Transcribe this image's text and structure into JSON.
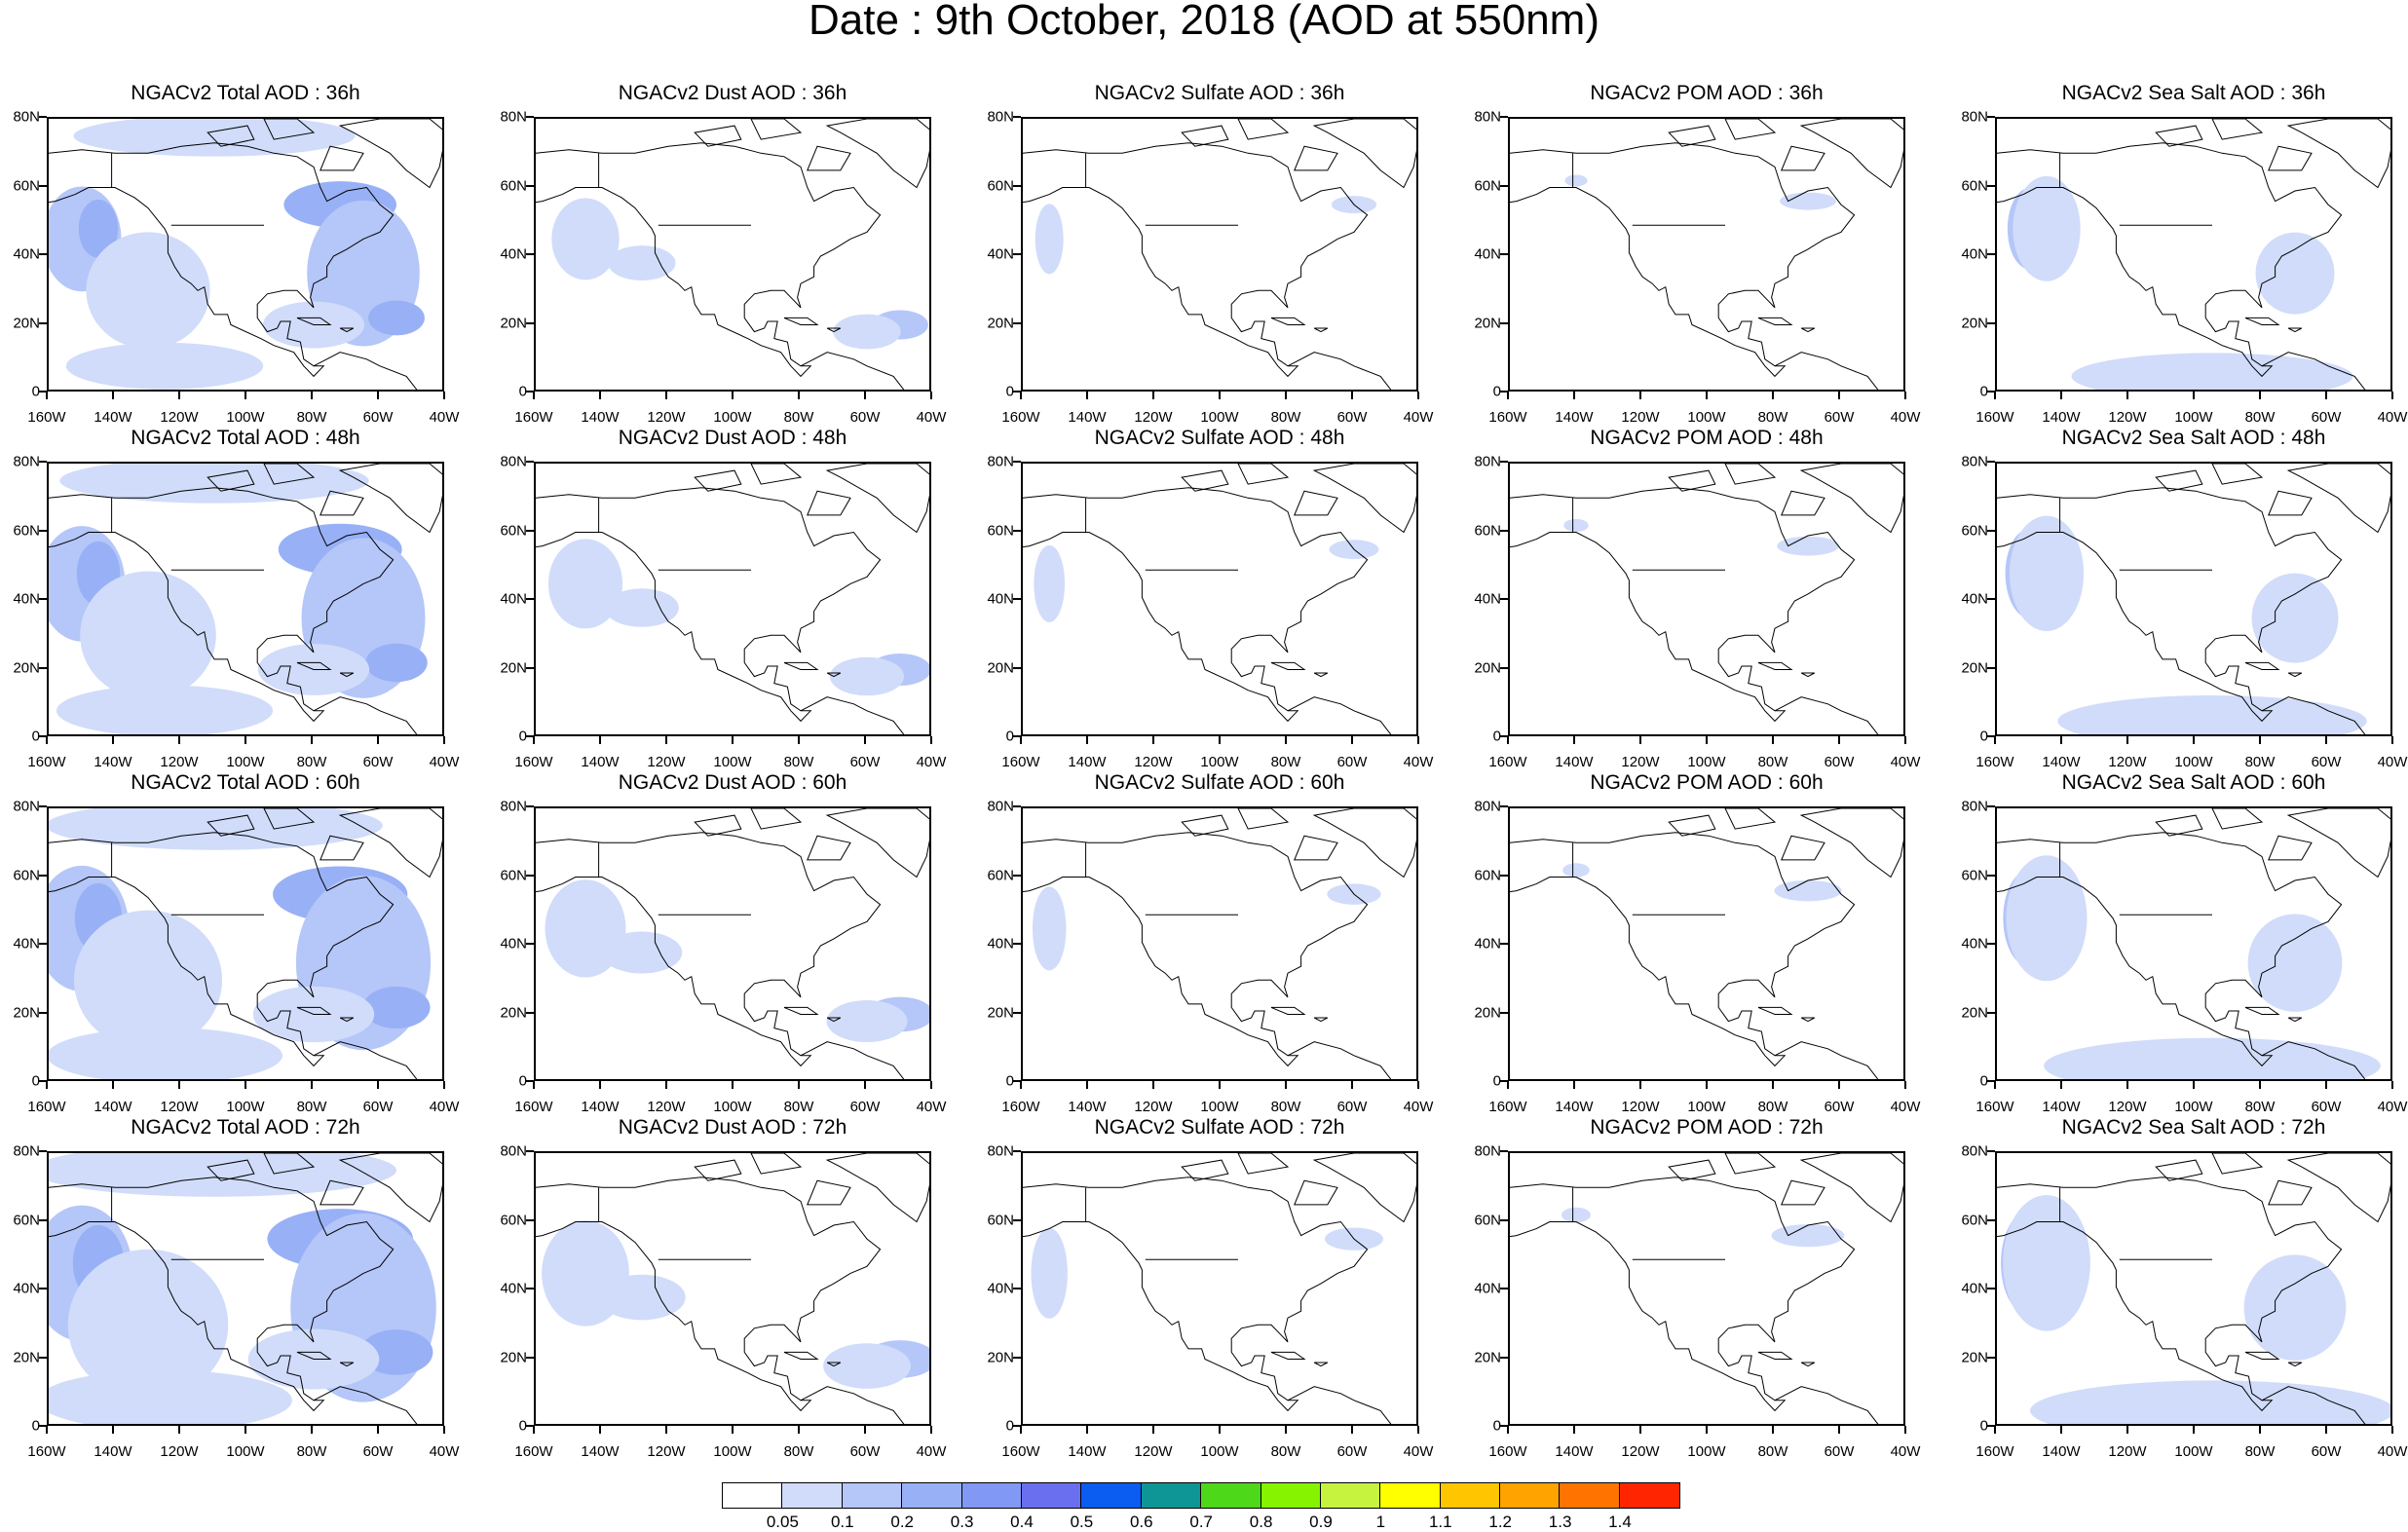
{
  "title": "Date : 9th October, 2018 (AOD at 550nm)",
  "chart_data": {
    "type": "heatmap",
    "grid": {
      "rows": 4,
      "cols": 5
    },
    "panels": [
      {
        "title": "NGACv2 Total AOD : 36h",
        "species": "total",
        "hour": 36
      },
      {
        "title": "NGACv2 Dust AOD : 36h",
        "species": "dust",
        "hour": 36
      },
      {
        "title": "NGACv2 Sulfate AOD : 36h",
        "species": "sulfate",
        "hour": 36
      },
      {
        "title": "NGACv2 POM AOD : 36h",
        "species": "pom",
        "hour": 36
      },
      {
        "title": "NGACv2 Sea Salt AOD : 36h",
        "species": "seasalt",
        "hour": 36
      },
      {
        "title": "NGACv2 Total AOD : 48h",
        "species": "total",
        "hour": 48
      },
      {
        "title": "NGACv2 Dust AOD : 48h",
        "species": "dust",
        "hour": 48
      },
      {
        "title": "NGACv2 Sulfate AOD : 48h",
        "species": "sulfate",
        "hour": 48
      },
      {
        "title": "NGACv2 POM AOD : 48h",
        "species": "pom",
        "hour": 48
      },
      {
        "title": "NGACv2 Sea Salt AOD : 48h",
        "species": "seasalt",
        "hour": 48
      },
      {
        "title": "NGACv2 Total AOD : 60h",
        "species": "total",
        "hour": 60
      },
      {
        "title": "NGACv2 Dust AOD : 60h",
        "species": "dust",
        "hour": 60
      },
      {
        "title": "NGACv2 Sulfate AOD : 60h",
        "species": "sulfate",
        "hour": 60
      },
      {
        "title": "NGACv2 POM AOD : 60h",
        "species": "pom",
        "hour": 60
      },
      {
        "title": "NGACv2 Sea Salt AOD : 60h",
        "species": "seasalt",
        "hour": 60
      },
      {
        "title": "NGACv2 Total AOD : 72h",
        "species": "total",
        "hour": 72
      },
      {
        "title": "NGACv2 Dust AOD : 72h",
        "species": "dust",
        "hour": 72
      },
      {
        "title": "NGACv2 Sulfate AOD : 72h",
        "species": "sulfate",
        "hour": 72
      },
      {
        "title": "NGACv2 POM AOD : 72h",
        "species": "pom",
        "hour": 72
      },
      {
        "title": "NGACv2 Sea Salt  AOD : 72h",
        "species": "seasalt",
        "hour": 72
      }
    ],
    "x_ticks": [
      "160W",
      "140W",
      "120W",
      "100W",
      "80W",
      "60W",
      "40W"
    ],
    "y_ticks": [
      "80N",
      "60N",
      "40N",
      "20N",
      "0"
    ],
    "xlim": [
      -160,
      -40
    ],
    "ylim": [
      0,
      80
    ],
    "colorbar": {
      "labels": [
        "0.05",
        "0.1",
        "0.2",
        "0.3",
        "0.4",
        "0.5",
        "0.6",
        "0.7",
        "0.8",
        "0.9",
        "1",
        "1.1",
        "1.2",
        "1.3",
        "1.4"
      ],
      "colors": [
        "#ffffff",
        "#d0dcfa",
        "#b5c6f8",
        "#98b0f6",
        "#8199f4",
        "#6a6ff0",
        "#0b5cf0",
        "#0e9696",
        "#4ed81a",
        "#86f400",
        "#c6f43e",
        "#ffff00",
        "#ffc600",
        "#ffa300",
        "#ff7400",
        "#ff2500"
      ]
    }
  }
}
